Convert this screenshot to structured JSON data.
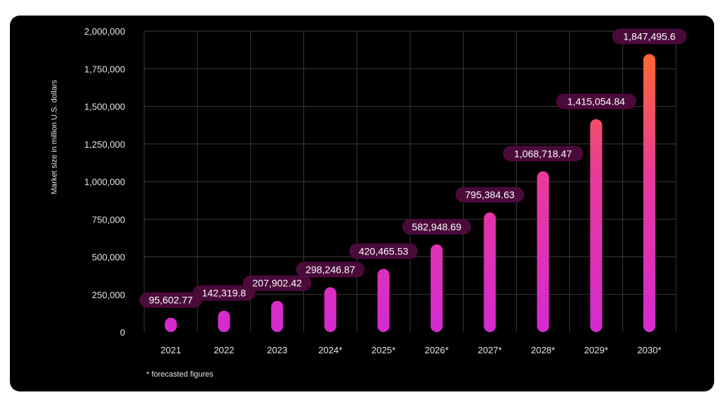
{
  "chart_data": {
    "type": "bar",
    "title": "",
    "xlabel": "",
    "ylabel": "Market size in million U.S. dollars",
    "categories": [
      "2021",
      "2022",
      "2023",
      "2024*",
      "2025*",
      "2026*",
      "2027*",
      "2028*",
      "2029*",
      "2030*"
    ],
    "values": [
      95602.77,
      142319.8,
      207902.42,
      298246.87,
      420465.53,
      582948.69,
      795384.63,
      1068718.47,
      1415054.84,
      1847495.6
    ],
    "value_labels": [
      "95,602.77",
      "142,319.8",
      "207,902.42",
      "298,246.87",
      "420,465.53",
      "582,948.69",
      "795,384.63",
      "1,068,718.47",
      "1,415,054.84",
      "1,847,495.6"
    ],
    "ylim": [
      0,
      2000000
    ],
    "yticks": [
      0,
      250000,
      500000,
      750000,
      1000000,
      1250000,
      1500000,
      1750000,
      2000000
    ],
    "ytick_labels": [
      "0",
      "250,000",
      "500,000",
      "750,000",
      "1,000,000",
      "1,250,000",
      "1,500,000",
      "1,750,000",
      "2,000,000"
    ],
    "grid": true,
    "footnote": "* forecasted figures"
  },
  "colors": {
    "background": "#000000",
    "grid": "#3a3a3a",
    "text": "#e6e6e6",
    "bar_bottom": "#d42ad0",
    "bar_top": "#ff6a2c",
    "label_bg": "#4a0a3a",
    "label_text": "#ffffff"
  }
}
